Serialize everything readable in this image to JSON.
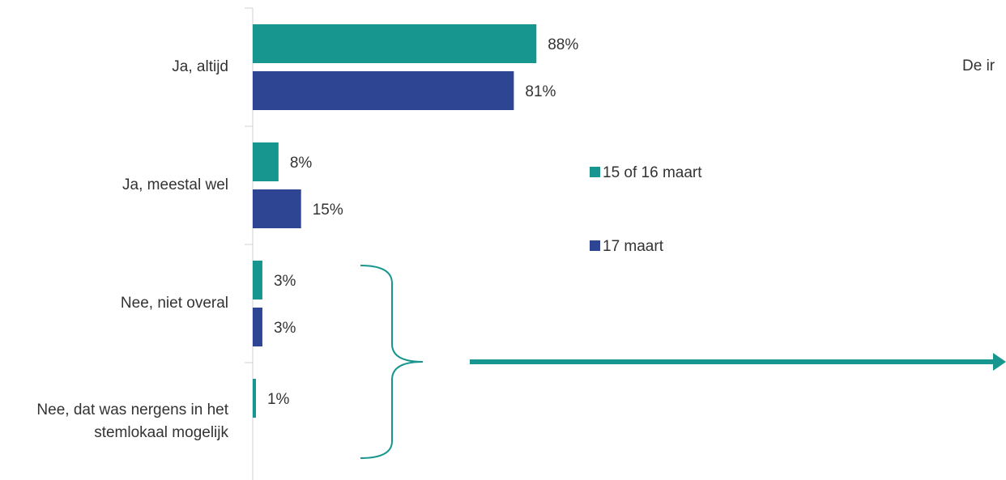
{
  "chart_data": {
    "type": "bar",
    "orientation": "horizontal",
    "categories": [
      "Ja, altijd",
      "Ja, meestal wel",
      "Nee, niet overal",
      "Nee, dat was nergens in het stemlokaal mogelijk"
    ],
    "series": [
      {
        "name": "15 of 16 maart",
        "color": "#17968f",
        "values": [
          88,
          8,
          3,
          1
        ],
        "value_labels": [
          "88%",
          "8%",
          "3%",
          "1%"
        ]
      },
      {
        "name": "17 maart",
        "color": "#2e4593",
        "values": [
          81,
          15,
          3,
          null
        ],
        "value_labels": [
          "81%",
          "15%",
          "3%",
          null
        ]
      }
    ],
    "xlim": [
      0,
      100
    ],
    "legend": "right",
    "annotation": "De ir"
  }
}
